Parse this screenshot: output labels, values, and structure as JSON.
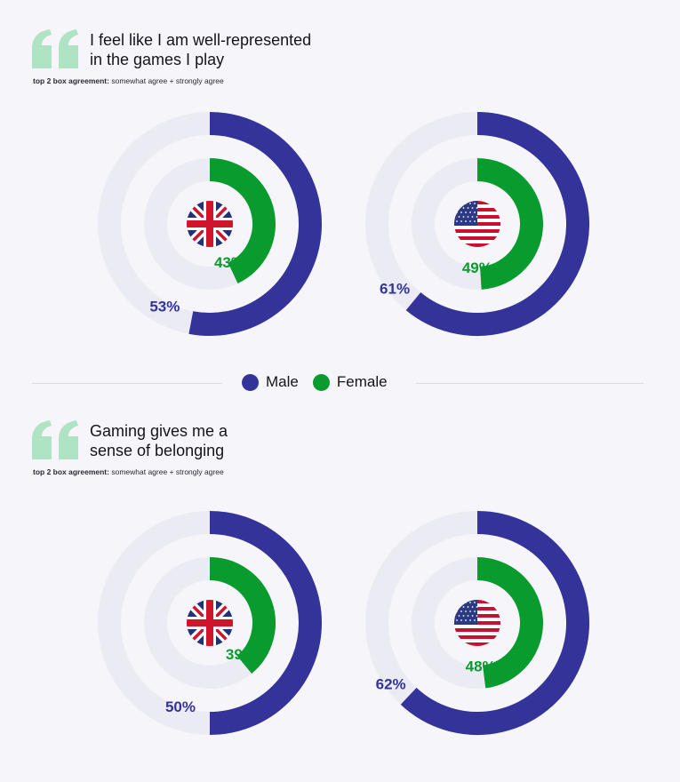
{
  "colors": {
    "male": "#333399",
    "female": "#0a9b2f",
    "track": "#ebebf4",
    "quote": "#aee3c4",
    "background": "#f6f6fa"
  },
  "legend": {
    "male": "Male",
    "female": "Female"
  },
  "sections": [
    {
      "title_line1": "I feel like I am well-represented",
      "title_line2": "in the games I play",
      "subtitle_bold": "top 2 box agreement:",
      "subtitle_rest": "somewhat agree + strongly agree"
    },
    {
      "title_line1": "Gaming gives me a",
      "title_line2": "sense of belonging",
      "subtitle_bold": "top 2 box agreement:",
      "subtitle_rest": "somewhat agree + strongly agree"
    }
  ],
  "chart_data": [
    {
      "type": "donut",
      "question": "I feel like I am well-represented in the games I play",
      "flag": "uk-flag",
      "series": [
        {
          "name": "Male",
          "value": 53,
          "label": "53%"
        },
        {
          "name": "Female",
          "value": 43,
          "label": "43%"
        }
      ]
    },
    {
      "type": "donut",
      "question": "I feel like I am well-represented in the games I play",
      "flag": "us-flag",
      "series": [
        {
          "name": "Male",
          "value": 61,
          "label": "61%"
        },
        {
          "name": "Female",
          "value": 49,
          "label": "49%"
        }
      ]
    },
    {
      "type": "donut",
      "question": "Gaming gives me a sense of belonging",
      "flag": "uk-flag",
      "series": [
        {
          "name": "Male",
          "value": 50,
          "label": "50%"
        },
        {
          "name": "Female",
          "value": 39,
          "label": "39%"
        }
      ]
    },
    {
      "type": "donut",
      "question": "Gaming gives me a sense of belonging",
      "flag": "us-flag",
      "series": [
        {
          "name": "Male",
          "value": 62,
          "label": "62%"
        },
        {
          "name": "Female",
          "value": 48,
          "label": "48%"
        }
      ]
    }
  ]
}
